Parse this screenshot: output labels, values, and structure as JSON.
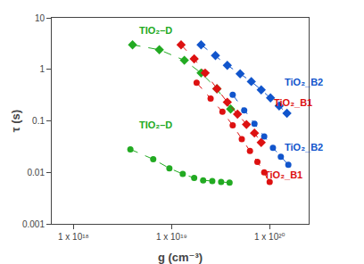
{
  "chart_data": {
    "type": "line",
    "title": "",
    "xlabel": "g (cm⁻³)",
    "ylabel": "τ (s)",
    "log": true,
    "grid": false,
    "xlim": [
      6e+17,
      2.5e+20
    ],
    "ylim": [
      0.001,
      10
    ],
    "xticks": [
      {
        "value": 1e+18,
        "label": "1 x 10¹⁸"
      },
      {
        "value": 1e+19,
        "label": "1 x 10¹⁹"
      },
      {
        "value": 1e+20,
        "label": "1 x 10²⁰"
      }
    ],
    "yticks": [
      0.001,
      0.01,
      0.1,
      1,
      10
    ],
    "series": [
      {
        "color": "#22aa22",
        "marker": "diamond",
        "line_style": "dashed",
        "x": [
          4e+18,
          7.5e+18,
          1.35e+19,
          2e+19,
          2.9e+19,
          4e+19
        ],
        "values": [
          3.0,
          2.4,
          1.5,
          0.85,
          0.42,
          0.17
        ]
      },
      {
        "color": "#22aa22",
        "marker": "circle",
        "line_style": "dashed",
        "x": [
          3.8e+18,
          6.5e+18,
          9.5e+18,
          1.3e+19,
          1.7e+19,
          2.1e+19,
          2.6e+19,
          3.2e+19,
          3.9e+19
        ],
        "values": [
          0.028,
          0.018,
          0.012,
          0.0093,
          0.0078,
          0.007,
          0.0068,
          0.0065,
          0.0063
        ]
      },
      {
        "color": "#dd1111",
        "marker": "diamond",
        "line_style": "dashed",
        "x": [
          1.25e+19,
          1.7e+19,
          2.2e+19,
          2.9e+19,
          3.7e+19,
          4.7e+19,
          5.8e+19,
          7e+19,
          8.2e+19
        ],
        "values": [
          3.0,
          1.6,
          0.85,
          0.42,
          0.23,
          0.135,
          0.085,
          0.058,
          0.038
        ]
      },
      {
        "color": "#dd1111",
        "marker": "circle",
        "line_style": "dashed",
        "x": [
          1.8e+19,
          2.5e+19,
          3.3e+19,
          4.2e+19,
          5.2e+19,
          6.3e+19,
          7.5e+19,
          8.8e+19,
          1e+20
        ],
        "values": [
          0.55,
          0.27,
          0.15,
          0.082,
          0.044,
          0.026,
          0.016,
          0.01,
          0.0065
        ]
      },
      {
        "color": "#1155cc",
        "marker": "diamond",
        "line_style": "dashed",
        "x": [
          2e+19,
          2.8e+19,
          3.7e+19,
          5e+19,
          6.5e+19,
          8.2e+19,
          1.02e+20,
          1.25e+20,
          1.5e+20
        ],
        "values": [
          3.0,
          1.85,
          1.2,
          0.82,
          0.58,
          0.4,
          0.28,
          0.195,
          0.14
        ]
      },
      {
        "color": "#1155cc",
        "marker": "circle",
        "line_style": "dashed",
        "x": [
          4.2e+19,
          5.5e+19,
          7e+19,
          8.8e+19,
          1.08e+20,
          1.3e+20,
          1.55e+20
        ],
        "values": [
          0.32,
          0.16,
          0.088,
          0.05,
          0.03,
          0.02,
          0.014
        ]
      }
    ],
    "annotations": [
      {
        "text": "TIO₂–D",
        "x": 4.5e+18,
        "y": 4.2,
        "color": "#22aa22"
      },
      {
        "text": "TIO₂–D",
        "x": 4.5e+18,
        "y": 0.06,
        "color": "#22aa22"
      },
      {
        "text": "TiO₂_B2",
        "x": 1.35e+20,
        "y": 0.42,
        "color": "#1155cc"
      },
      {
        "text": "TiO₂_B1",
        "x": 1.05e+20,
        "y": 0.165,
        "color": "#dd1111"
      },
      {
        "text": "TiO₂_B2",
        "x": 1.35e+20,
        "y": 0.022,
        "color": "#1155cc"
      },
      {
        "text": "TiO₂_B1",
        "x": 8.5e+19,
        "y": 0.0065,
        "color": "#dd1111"
      }
    ]
  }
}
